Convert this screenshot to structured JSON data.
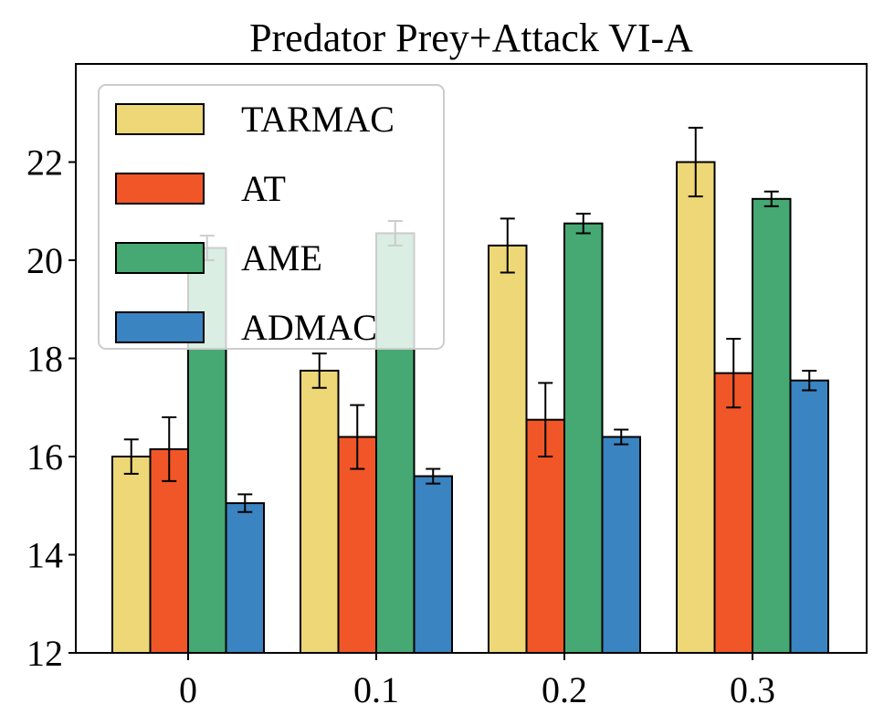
{
  "chart_data": {
    "type": "bar",
    "title": "Predator Prey+Attack VI-A",
    "xlabel": "",
    "ylabel": "",
    "categories": [
      "0",
      "0.1",
      "0.2",
      "0.3"
    ],
    "ylim": [
      12,
      24
    ],
    "yticks": [
      12,
      14,
      16,
      18,
      20,
      22
    ],
    "legend_position": "upper-left",
    "series": [
      {
        "name": "TARMAC",
        "color": "#eed777",
        "values": [
          16.0,
          17.75,
          20.3,
          22.0
        ],
        "errors": [
          0.35,
          0.35,
          0.55,
          0.7
        ]
      },
      {
        "name": "AT",
        "color": "#f05627",
        "values": [
          16.15,
          16.4,
          16.75,
          17.7
        ],
        "errors": [
          0.65,
          0.65,
          0.75,
          0.7
        ]
      },
      {
        "name": "AME",
        "color": "#46a872",
        "values": [
          20.25,
          20.55,
          20.75,
          21.25
        ],
        "errors": [
          0.25,
          0.25,
          0.2,
          0.15
        ]
      },
      {
        "name": "ADMAC",
        "color": "#3a84c1",
        "values": [
          15.05,
          15.6,
          16.4,
          17.55
        ],
        "errors": [
          0.18,
          0.15,
          0.15,
          0.2
        ]
      }
    ]
  }
}
